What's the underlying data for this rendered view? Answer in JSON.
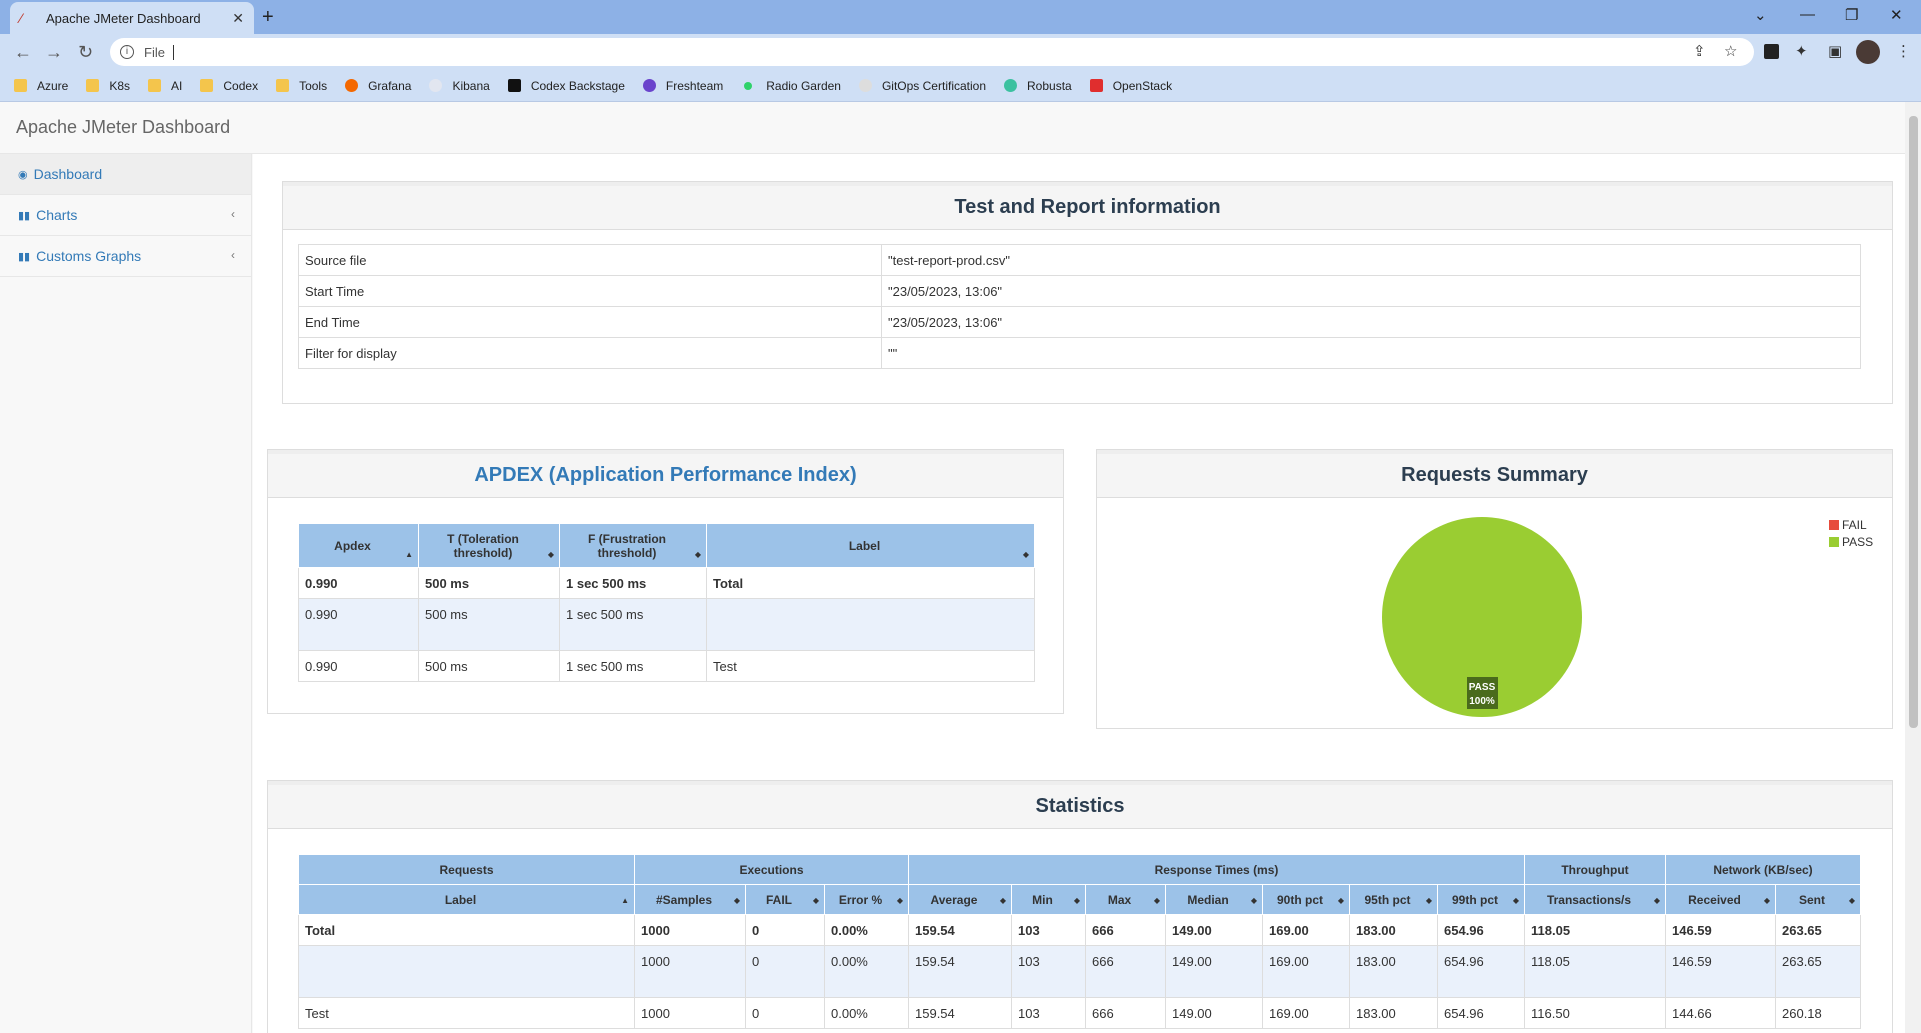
{
  "browser": {
    "tab_title": "Apache JMeter Dashboard",
    "new_tab": "+",
    "address_scheme": "File",
    "bookmarks": [
      "Azure",
      "K8s",
      "AI",
      "Codex",
      "Tools",
      "Grafana",
      "Kibana",
      "Codex Backstage",
      "Freshteam",
      "Radio Garden",
      "GitOps Certification",
      "Robusta",
      "OpenStack"
    ]
  },
  "app": {
    "brand": "Apache JMeter Dashboard",
    "sidebar": [
      {
        "label": "Dashboard"
      },
      {
        "label": "Charts"
      },
      {
        "label": "Customs Graphs"
      }
    ]
  },
  "test_info": {
    "title": "Test and Report information",
    "rows": [
      {
        "key": "Source file",
        "value": "\"test-report-prod.csv\""
      },
      {
        "key": "Start Time",
        "value": "\"23/05/2023, 13:06\""
      },
      {
        "key": "End Time",
        "value": "\"23/05/2023, 13:06\""
      },
      {
        "key": "Filter for display",
        "value": "\"\""
      }
    ]
  },
  "apdex": {
    "title": "APDEX (Application Performance Index)",
    "headers": [
      "Apdex",
      "T (Toleration threshold)",
      "F (Frustration threshold)",
      "Label"
    ],
    "rows": [
      [
        "0.990",
        "500 ms",
        "1 sec 500 ms",
        "Total"
      ],
      [
        "0.990",
        "500 ms",
        "1 sec 500 ms",
        ""
      ],
      [
        "0.990",
        "500 ms",
        "1 sec 500 ms",
        "Test"
      ]
    ]
  },
  "summary": {
    "title": "Requests Summary",
    "legend": [
      {
        "label": "FAIL",
        "color": "#e74c3c"
      },
      {
        "label": "PASS",
        "color": "#9acd32"
      }
    ],
    "slice_label": "PASS",
    "slice_pct": "100%"
  },
  "chart_data": {
    "type": "pie",
    "categories": [
      "FAIL",
      "PASS"
    ],
    "values": [
      0,
      100
    ],
    "colors": [
      "#e74c3c",
      "#9acd32"
    ],
    "title": "Requests Summary",
    "legend": "top-right"
  },
  "statistics": {
    "title": "Statistics",
    "groups": [
      {
        "label": "Requests",
        "span": 1
      },
      {
        "label": "Executions",
        "span": 3
      },
      {
        "label": "Response Times (ms)",
        "span": 7
      },
      {
        "label": "Throughput",
        "span": 1
      },
      {
        "label": "Network (KB/sec)",
        "span": 2
      }
    ],
    "headers": [
      "Label",
      "#Samples",
      "FAIL",
      "Error %",
      "Average",
      "Min",
      "Max",
      "Median",
      "90th pct",
      "95th pct",
      "99th pct",
      "Transactions/s",
      "Received",
      "Sent"
    ],
    "rows": [
      [
        "Total",
        "1000",
        "0",
        "0.00%",
        "159.54",
        "103",
        "666",
        "149.00",
        "169.00",
        "183.00",
        "654.96",
        "118.05",
        "146.59",
        "263.65"
      ],
      [
        "",
        "1000",
        "0",
        "0.00%",
        "159.54",
        "103",
        "666",
        "149.00",
        "169.00",
        "183.00",
        "654.96",
        "118.05",
        "146.59",
        "263.65"
      ],
      [
        "Test",
        "1000",
        "0",
        "0.00%",
        "159.54",
        "103",
        "666",
        "149.00",
        "169.00",
        "183.00",
        "654.96",
        "116.50",
        "144.66",
        "260.18"
      ]
    ]
  }
}
